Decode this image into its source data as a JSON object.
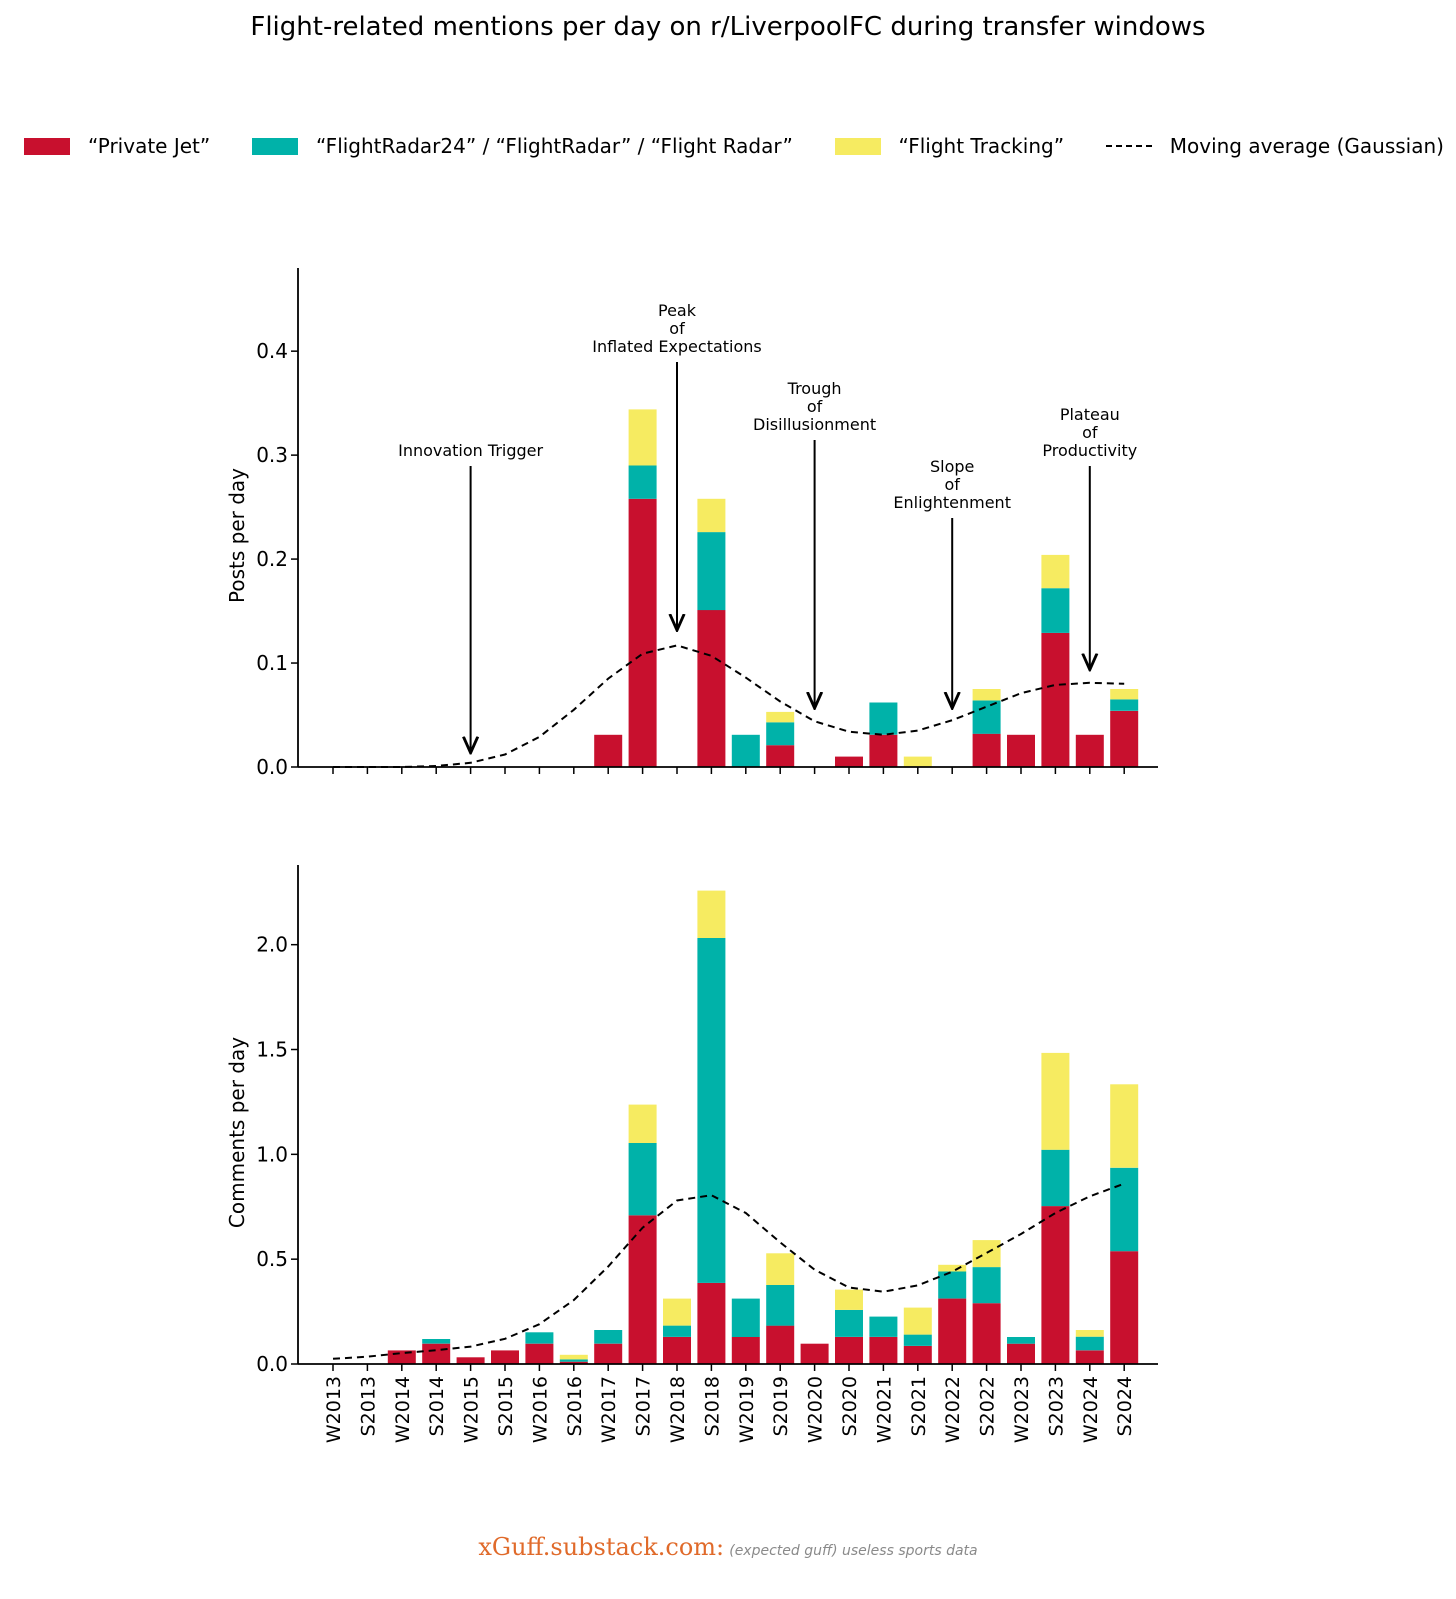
{
  "chart_data": {
    "type": "bar",
    "title": "Flight-related mentions per day on r/LiverpoolFC during transfer windows",
    "categories": [
      "W2013",
      "S2013",
      "W2014",
      "S2014",
      "W2015",
      "S2015",
      "W2016",
      "S2016",
      "W2017",
      "S2017",
      "W2018",
      "S2018",
      "W2019",
      "S2019",
      "W2020",
      "S2020",
      "W2021",
      "S2021",
      "W2022",
      "S2022",
      "W2023",
      "S2023",
      "W2024",
      "S2024"
    ],
    "legend": [
      {
        "key": "jet",
        "label": "“Private Jet”",
        "color": "#c8102e",
        "kind": "bar"
      },
      {
        "key": "radar",
        "label": "“FlightRadar24” / “FlightRadar” / “Flight Radar”",
        "color": "#00b2a9",
        "kind": "bar"
      },
      {
        "key": "tracking",
        "label": "“Flight Tracking”",
        "color": "#f6eb61",
        "kind": "bar"
      },
      {
        "key": "ma",
        "label": "Moving average (Gaussian)",
        "color": "#000000",
        "kind": "line"
      }
    ],
    "panels": [
      {
        "id": "posts",
        "ylabel": "Posts per day",
        "ylim": [
          0,
          0.48
        ],
        "yticks": [
          0.0,
          0.1,
          0.2,
          0.3,
          0.4
        ],
        "ytick_labels": [
          "0.0",
          "0.1",
          "0.2",
          "0.3",
          "0.4"
        ],
        "series": [
          {
            "name": "Private Jet",
            "values": [
              0,
              0,
              0,
              0,
              0,
              0,
              0,
              0,
              0.031,
              0.258,
              0,
              0.151,
              0,
              0.021,
              0,
              0.01,
              0.031,
              0,
              0,
              0.032,
              0.031,
              0.129,
              0.031,
              0.054
            ]
          },
          {
            "name": "FlightRadar",
            "values": [
              0,
              0,
              0,
              0,
              0,
              0,
              0,
              0,
              0,
              0.032,
              0,
              0.075,
              0.031,
              0.022,
              0,
              0,
              0.031,
              0,
              0,
              0.032,
              0,
              0.043,
              0,
              0.011
            ]
          },
          {
            "name": "Flight Tracking",
            "values": [
              0,
              0,
              0,
              0,
              0,
              0,
              0,
              0,
              0,
              0.054,
              0,
              0.032,
              0,
              0.01,
              0,
              0,
              0,
              0.01,
              0,
              0.011,
              0,
              0.032,
              0,
              0.01
            ]
          }
        ],
        "moving_average": [
          0,
          0,
          0,
          0.001,
          0.004,
          0.012,
          0.029,
          0.055,
          0.085,
          0.109,
          0.117,
          0.107,
          0.086,
          0.063,
          0.044,
          0.034,
          0.031,
          0.035,
          0.045,
          0.058,
          0.071,
          0.079,
          0.081,
          0.08
        ],
        "annotations": [
          {
            "lines": [
              "Innovation Trigger"
            ],
            "x_index": 4,
            "y": 0.004
          },
          {
            "lines": [
              "Peak",
              "of",
              "Inflated Expectations"
            ],
            "x_index": 10,
            "y": 0.122
          },
          {
            "lines": [
              "Trough",
              "of",
              "Disillusionment"
            ],
            "x_index": 14,
            "y": 0.047
          },
          {
            "lines": [
              "Slope",
              "of",
              "Enlightenment"
            ],
            "x_index": 18,
            "y": 0.047
          },
          {
            "lines": [
              "Plateau",
              "of",
              "Productivity"
            ],
            "x_index": 22,
            "y": 0.084
          }
        ]
      },
      {
        "id": "comments",
        "ylabel": "Comments per day",
        "ylim": [
          0,
          2.38
        ],
        "yticks": [
          0.0,
          0.5,
          1.0,
          1.5,
          2.0
        ],
        "ytick_labels": [
          "0.0",
          "0.5",
          "1.0",
          "1.5",
          "2.0"
        ],
        "series": [
          {
            "name": "Private Jet",
            "values": [
              0,
              0,
              0.065,
              0.097,
              0.032,
              0.065,
              0.097,
              0.011,
              0.097,
              0.709,
              0.129,
              0.387,
              0.129,
              0.183,
              0.097,
              0.129,
              0.129,
              0.086,
              0.312,
              0.29,
              0.097,
              0.753,
              0.065,
              0.538
            ]
          },
          {
            "name": "FlightRadar",
            "values": [
              0,
              0,
              0,
              0.022,
              0,
              0,
              0.054,
              0.011,
              0.065,
              0.345,
              0.054,
              1.645,
              0.183,
              0.194,
              0,
              0.129,
              0.097,
              0.054,
              0.129,
              0.172,
              0.032,
              0.269,
              0.065,
              0.398
            ]
          },
          {
            "name": "Flight Tracking",
            "values": [
              0,
              0,
              0,
              0,
              0,
              0,
              0,
              0.022,
              0,
              0.183,
              0.129,
              0.226,
              0,
              0.151,
              0,
              0.097,
              0,
              0.129,
              0.032,
              0.129,
              0,
              0.462,
              0.032,
              0.398
            ]
          }
        ],
        "moving_average": [
          0.025,
          0.035,
          0.052,
          0.066,
          0.083,
          0.12,
          0.19,
          0.305,
          0.465,
          0.65,
          0.78,
          0.805,
          0.72,
          0.58,
          0.45,
          0.365,
          0.345,
          0.375,
          0.44,
          0.53,
          0.62,
          0.72,
          0.8,
          0.86
        ]
      }
    ]
  },
  "footer": {
    "site": "xGuff.substack.com:",
    "tagline": "(expected guff) useless sports data"
  }
}
